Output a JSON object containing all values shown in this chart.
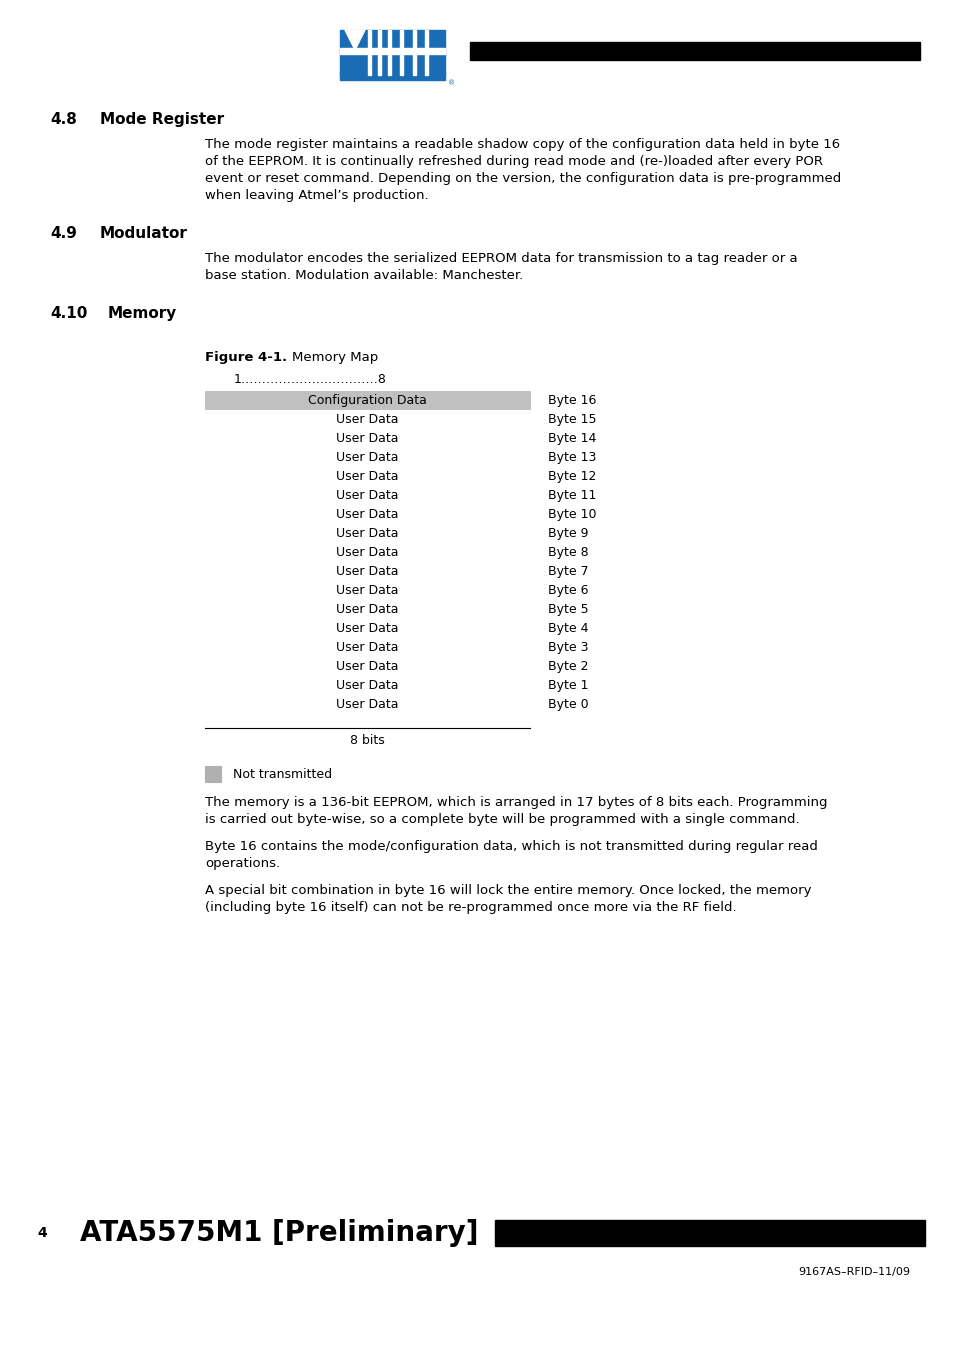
{
  "page_bg": "#ffffff",
  "section_48_title": "4.8",
  "section_48_title2": "Mode Register",
  "section_48_text": "The mode register maintains a readable shadow copy of the configuration data held in byte 16\nof the EEPROM. It is continually refreshed during read mode and (re-)loaded after every POR\nevent or reset command. Depending on the version, the configuration data is pre-programmed\nwhen leaving Atmel’s production.",
  "section_49_title": "4.9",
  "section_49_title2": "Modulator",
  "section_49_text": "The modulator encodes the serialized EEPROM data for transmission to a tag reader or a\nbase station. Modulation available: Manchester.",
  "section_410_title": "4.10",
  "section_410_title2": "Memory",
  "figure_bold": "Figure 4-1.",
  "figure_subtitle": "    Memory Map",
  "table_header": "Configuration Data",
  "table_header_bg": "#c0c0c0",
  "table_row_label": "User Data",
  "byte_labels": [
    "Byte 16",
    "Byte 15",
    "Byte 14",
    "Byte 13",
    "Byte 12",
    "Byte 11",
    "Byte 10",
    "Byte 9",
    "Byte 8",
    "Byte 7",
    "Byte 6",
    "Byte 5",
    "Byte 4",
    "Byte 3",
    "Byte 2",
    "Byte 1",
    "Byte 0"
  ],
  "col_label_top": "1………………...…………8",
  "bits_label": "8 bits",
  "legend_color": "#b0b0b0",
  "legend_text": "Not transmitted",
  "body_text_1": "The memory is a 136-bit EEPROM, which is arranged in 17 bytes of 8 bits each. Programming\nis carried out byte-wise, so a complete byte will be programmed with a single command.",
  "body_text_2": "Byte 16 contains the mode/configuration data, which is not transmitted during regular read\noperations.",
  "body_text_3": "A special bit combination in byte 16 will lock the entire memory. Once locked, the memory\n(including byte 16 itself) can not be re-programmed once more via the RF field.",
  "footer_page_num": "4",
  "footer_title": "ATA5575M1 [Preliminary]",
  "footer_ref": "9167AS–RFID–11/09",
  "atmel_blue": "#1a6db5"
}
